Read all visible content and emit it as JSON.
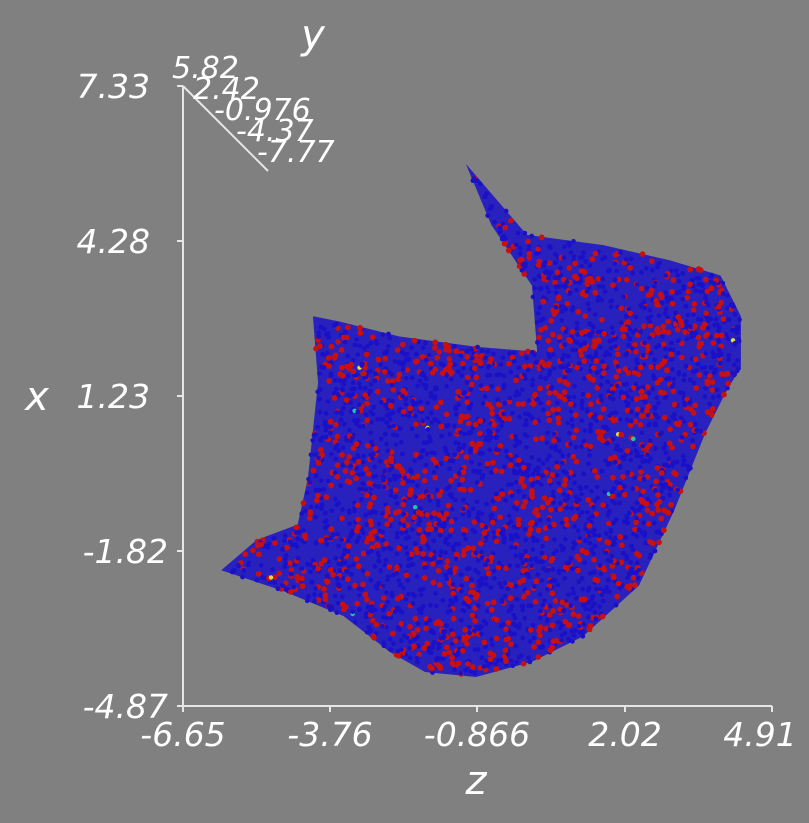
{
  "chart_data": {
    "type": "scatter",
    "xlabel": "z",
    "ylabel": "x",
    "depth_axis_label": "y",
    "x_ticks": [
      "-6.65",
      "-3.76",
      "-0.866",
      "2.02",
      "4.91"
    ],
    "y_ticks": [
      "7.33",
      "4.28",
      "1.23",
      "-1.82",
      "-4.87"
    ],
    "depth_ticks": [
      "5.82",
      "2.42",
      "-0.976",
      "-4.37",
      "-7.77"
    ],
    "xlim": [
      -6.65,
      4.91
    ],
    "ylim": [
      -4.87,
      7.33
    ],
    "depth_lim": [
      -7.77,
      5.82
    ],
    "grid": false,
    "legend": "none",
    "colors": {
      "background": "#808080",
      "axes": "#e6e6e6",
      "text": "#ffffff",
      "points_primary": "#1a10c8",
      "points_secondary": "#c81010",
      "points_sparse": [
        "#20c8a0",
        "#e0e040"
      ]
    },
    "series": [
      {
        "color": "#1a10c8",
        "description": "dense point cloud (majority, blue)",
        "outline_z_x": [
          [
            -5.9,
            -2.2
          ],
          [
            -4.7,
            -2.6
          ],
          [
            -3.5,
            -3.1
          ],
          [
            -2.6,
            -3.8
          ],
          [
            -1.9,
            -4.2
          ],
          [
            -0.9,
            -4.3
          ],
          [
            0.2,
            -4.0
          ],
          [
            1.2,
            -3.5
          ],
          [
            2.3,
            -2.5
          ],
          [
            3.0,
            -1.0
          ],
          [
            3.6,
            0.5
          ],
          [
            4.0,
            1.3
          ],
          [
            4.3,
            1.8
          ],
          [
            4.3,
            2.8
          ],
          [
            3.9,
            3.6
          ],
          [
            2.9,
            3.9
          ],
          [
            1.6,
            4.2
          ],
          [
            0.1,
            4.4
          ],
          [
            -1.1,
            5.8
          ],
          [
            -0.6,
            4.6
          ],
          [
            0.2,
            3.4
          ],
          [
            0.3,
            2.1
          ],
          [
            -0.9,
            2.2
          ],
          [
            -2.4,
            2.4
          ],
          [
            -3.6,
            2.7
          ],
          [
            -4.1,
            2.8
          ],
          [
            -4.0,
            1.5
          ],
          [
            -4.2,
            -0.4
          ],
          [
            -4.4,
            -1.3
          ],
          [
            -5.2,
            -1.6
          ]
        ]
      },
      {
        "color": "#c81010",
        "description": "interleaved point cloud (red)"
      },
      {
        "color": "#20c8a0",
        "description": "sparse points (cyan / yellow)"
      }
    ]
  }
}
